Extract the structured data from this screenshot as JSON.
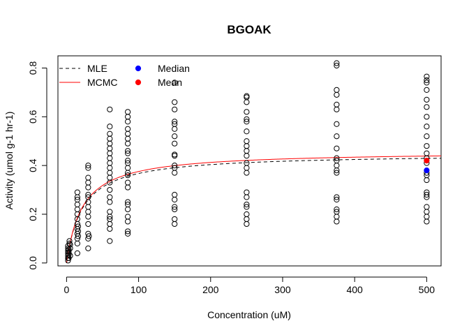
{
  "chart_data": {
    "type": "scatter",
    "title": "BGOAK",
    "xlabel": "Concentration (uM)",
    "ylabel": "Activity (umol g-1 hr-1)",
    "xlim": [
      -12,
      520
    ],
    "ylim": [
      -0.012,
      0.85
    ],
    "xticks": [
      0,
      100,
      200,
      300,
      400,
      500
    ],
    "yticks": [
      0.0,
      0.2,
      0.4,
      0.6,
      0.8
    ],
    "xtick_labels": [
      "0",
      "100",
      "200",
      "300",
      "400",
      "500"
    ],
    "ytick_labels": [
      "0.0",
      "0.2",
      "0.4",
      "0.6",
      "0.8"
    ],
    "legend": {
      "position": "top-left",
      "entries": [
        {
          "label": "MLE",
          "kind": "line",
          "color": "#000000",
          "dash": true
        },
        {
          "label": "MCMC",
          "kind": "line",
          "color": "#ff0000",
          "dash": false
        },
        {
          "label": "Median",
          "kind": "point",
          "color": "#0000ff"
        },
        {
          "label": "Mean",
          "kind": "point",
          "color": "#ff0000"
        }
      ]
    },
    "series": [
      {
        "name": "observations",
        "color": "#000000",
        "points": [
          {
            "x": 2,
            "y": 0.01
          },
          {
            "x": 2,
            "y": 0.02
          },
          {
            "x": 2,
            "y": 0.03
          },
          {
            "x": 2,
            "y": 0.04
          },
          {
            "x": 2,
            "y": 0.05
          },
          {
            "x": 2,
            "y": 0.06
          },
          {
            "x": 2,
            "y": 0.07
          },
          {
            "x": 3,
            "y": 0.02
          },
          {
            "x": 3,
            "y": 0.035
          },
          {
            "x": 3,
            "y": 0.045
          },
          {
            "x": 3,
            "y": 0.055
          },
          {
            "x": 4,
            "y": 0.08
          },
          {
            "x": 4,
            "y": 0.09
          },
          {
            "x": 5,
            "y": 0.06
          },
          {
            "x": 5,
            "y": 0.075
          },
          {
            "x": 5,
            "y": 0.03
          },
          {
            "x": 15,
            "y": 0.04
          },
          {
            "x": 15,
            "y": 0.08
          },
          {
            "x": 15,
            "y": 0.1
          },
          {
            "x": 15,
            "y": 0.12
          },
          {
            "x": 15,
            "y": 0.14
          },
          {
            "x": 15,
            "y": 0.16
          },
          {
            "x": 15,
            "y": 0.18
          },
          {
            "x": 15,
            "y": 0.2
          },
          {
            "x": 15,
            "y": 0.22
          },
          {
            "x": 15,
            "y": 0.24
          },
          {
            "x": 15,
            "y": 0.26
          },
          {
            "x": 15,
            "y": 0.27
          },
          {
            "x": 15,
            "y": 0.29
          },
          {
            "x": 16,
            "y": 0.11
          },
          {
            "x": 16,
            "y": 0.13
          },
          {
            "x": 16,
            "y": 0.15
          },
          {
            "x": 30,
            "y": 0.06
          },
          {
            "x": 30,
            "y": 0.1
          },
          {
            "x": 30,
            "y": 0.12
          },
          {
            "x": 30,
            "y": 0.16
          },
          {
            "x": 30,
            "y": 0.19
          },
          {
            "x": 30,
            "y": 0.21
          },
          {
            "x": 30,
            "y": 0.23
          },
          {
            "x": 30,
            "y": 0.25
          },
          {
            "x": 30,
            "y": 0.27
          },
          {
            "x": 30,
            "y": 0.28
          },
          {
            "x": 30,
            "y": 0.31
          },
          {
            "x": 30,
            "y": 0.33
          },
          {
            "x": 30,
            "y": 0.35
          },
          {
            "x": 30,
            "y": 0.39
          },
          {
            "x": 30,
            "y": 0.4
          },
          {
            "x": 31,
            "y": 0.11
          },
          {
            "x": 60,
            "y": 0.09
          },
          {
            "x": 60,
            "y": 0.14
          },
          {
            "x": 60,
            "y": 0.16
          },
          {
            "x": 60,
            "y": 0.18
          },
          {
            "x": 60,
            "y": 0.19
          },
          {
            "x": 60,
            "y": 0.21
          },
          {
            "x": 60,
            "y": 0.25
          },
          {
            "x": 60,
            "y": 0.27
          },
          {
            "x": 60,
            "y": 0.3
          },
          {
            "x": 60,
            "y": 0.33
          },
          {
            "x": 60,
            "y": 0.35
          },
          {
            "x": 60,
            "y": 0.37
          },
          {
            "x": 60,
            "y": 0.39
          },
          {
            "x": 60,
            "y": 0.41
          },
          {
            "x": 60,
            "y": 0.43
          },
          {
            "x": 60,
            "y": 0.45
          },
          {
            "x": 60,
            "y": 0.47
          },
          {
            "x": 60,
            "y": 0.49
          },
          {
            "x": 60,
            "y": 0.51
          },
          {
            "x": 60,
            "y": 0.53
          },
          {
            "x": 60,
            "y": 0.56
          },
          {
            "x": 60,
            "y": 0.63
          },
          {
            "x": 85,
            "y": 0.12
          },
          {
            "x": 85,
            "y": 0.13
          },
          {
            "x": 85,
            "y": 0.17
          },
          {
            "x": 85,
            "y": 0.19
          },
          {
            "x": 85,
            "y": 0.22
          },
          {
            "x": 85,
            "y": 0.24
          },
          {
            "x": 85,
            "y": 0.25
          },
          {
            "x": 85,
            "y": 0.31
          },
          {
            "x": 85,
            "y": 0.33
          },
          {
            "x": 85,
            "y": 0.36
          },
          {
            "x": 85,
            "y": 0.37
          },
          {
            "x": 85,
            "y": 0.39
          },
          {
            "x": 85,
            "y": 0.41
          },
          {
            "x": 85,
            "y": 0.42
          },
          {
            "x": 85,
            "y": 0.45
          },
          {
            "x": 85,
            "y": 0.46
          },
          {
            "x": 85,
            "y": 0.49
          },
          {
            "x": 85,
            "y": 0.51
          },
          {
            "x": 85,
            "y": 0.53
          },
          {
            "x": 85,
            "y": 0.55
          },
          {
            "x": 85,
            "y": 0.58
          },
          {
            "x": 85,
            "y": 0.6
          },
          {
            "x": 85,
            "y": 0.62
          },
          {
            "x": 150,
            "y": 0.16
          },
          {
            "x": 150,
            "y": 0.18
          },
          {
            "x": 150,
            "y": 0.22
          },
          {
            "x": 150,
            "y": 0.23
          },
          {
            "x": 150,
            "y": 0.26
          },
          {
            "x": 150,
            "y": 0.28
          },
          {
            "x": 150,
            "y": 0.37
          },
          {
            "x": 150,
            "y": 0.39
          },
          {
            "x": 150,
            "y": 0.4
          },
          {
            "x": 150,
            "y": 0.44
          },
          {
            "x": 150,
            "y": 0.445
          },
          {
            "x": 150,
            "y": 0.49
          },
          {
            "x": 150,
            "y": 0.52
          },
          {
            "x": 150,
            "y": 0.55
          },
          {
            "x": 150,
            "y": 0.57
          },
          {
            "x": 150,
            "y": 0.58
          },
          {
            "x": 150,
            "y": 0.63
          },
          {
            "x": 150,
            "y": 0.66
          },
          {
            "x": 150,
            "y": 0.74
          },
          {
            "x": 250,
            "y": 0.16
          },
          {
            "x": 250,
            "y": 0.18
          },
          {
            "x": 250,
            "y": 0.2
          },
          {
            "x": 250,
            "y": 0.23
          },
          {
            "x": 250,
            "y": 0.24
          },
          {
            "x": 250,
            "y": 0.27
          },
          {
            "x": 250,
            "y": 0.29
          },
          {
            "x": 250,
            "y": 0.37
          },
          {
            "x": 250,
            "y": 0.39
          },
          {
            "x": 250,
            "y": 0.41
          },
          {
            "x": 250,
            "y": 0.44
          },
          {
            "x": 250,
            "y": 0.46
          },
          {
            "x": 250,
            "y": 0.48
          },
          {
            "x": 250,
            "y": 0.5
          },
          {
            "x": 250,
            "y": 0.54
          },
          {
            "x": 250,
            "y": 0.58
          },
          {
            "x": 250,
            "y": 0.59
          },
          {
            "x": 250,
            "y": 0.62
          },
          {
            "x": 250,
            "y": 0.66
          },
          {
            "x": 250,
            "y": 0.68
          },
          {
            "x": 250,
            "y": 0.685
          },
          {
            "x": 375,
            "y": 0.17
          },
          {
            "x": 375,
            "y": 0.19
          },
          {
            "x": 375,
            "y": 0.21
          },
          {
            "x": 375,
            "y": 0.22
          },
          {
            "x": 375,
            "y": 0.26
          },
          {
            "x": 375,
            "y": 0.27
          },
          {
            "x": 375,
            "y": 0.37
          },
          {
            "x": 375,
            "y": 0.38
          },
          {
            "x": 375,
            "y": 0.4
          },
          {
            "x": 375,
            "y": 0.42
          },
          {
            "x": 375,
            "y": 0.43
          },
          {
            "x": 375,
            "y": 0.47
          },
          {
            "x": 375,
            "y": 0.52
          },
          {
            "x": 375,
            "y": 0.57
          },
          {
            "x": 375,
            "y": 0.63
          },
          {
            "x": 375,
            "y": 0.65
          },
          {
            "x": 375,
            "y": 0.69
          },
          {
            "x": 375,
            "y": 0.71
          },
          {
            "x": 375,
            "y": 0.81
          },
          {
            "x": 375,
            "y": 0.82
          },
          {
            "x": 500,
            "y": 0.17
          },
          {
            "x": 500,
            "y": 0.19
          },
          {
            "x": 500,
            "y": 0.21
          },
          {
            "x": 500,
            "y": 0.23
          },
          {
            "x": 500,
            "y": 0.27
          },
          {
            "x": 500,
            "y": 0.28
          },
          {
            "x": 500,
            "y": 0.29
          },
          {
            "x": 500,
            "y": 0.34
          },
          {
            "x": 500,
            "y": 0.36
          },
          {
            "x": 500,
            "y": 0.37
          },
          {
            "x": 500,
            "y": 0.41
          },
          {
            "x": 500,
            "y": 0.43
          },
          {
            "x": 500,
            "y": 0.45
          },
          {
            "x": 500,
            "y": 0.48
          },
          {
            "x": 500,
            "y": 0.52
          },
          {
            "x": 500,
            "y": 0.56
          },
          {
            "x": 500,
            "y": 0.6
          },
          {
            "x": 500,
            "y": 0.64
          },
          {
            "x": 500,
            "y": 0.67
          },
          {
            "x": 500,
            "y": 0.71
          },
          {
            "x": 500,
            "y": 0.74
          },
          {
            "x": 500,
            "y": 0.75
          },
          {
            "x": 500,
            "y": 0.765
          }
        ]
      }
    ],
    "summary_points": [
      {
        "name": "Median",
        "x": 500,
        "y": 0.38,
        "color": "#0000ff"
      },
      {
        "name": "Mean",
        "x": 500,
        "y": 0.42,
        "color": "#ff0000"
      }
    ],
    "curves": [
      {
        "name": "MLE",
        "model": "michaelis-menten",
        "vmax": 0.448,
        "km": 22,
        "x_range": [
          0,
          520
        ],
        "color": "#000000",
        "dash": true
      },
      {
        "name": "MCMC",
        "model": "michaelis-menten",
        "vmax": 0.458,
        "km": 22,
        "x_range": [
          0,
          520
        ],
        "color": "#ff0000",
        "dash": false
      }
    ]
  }
}
